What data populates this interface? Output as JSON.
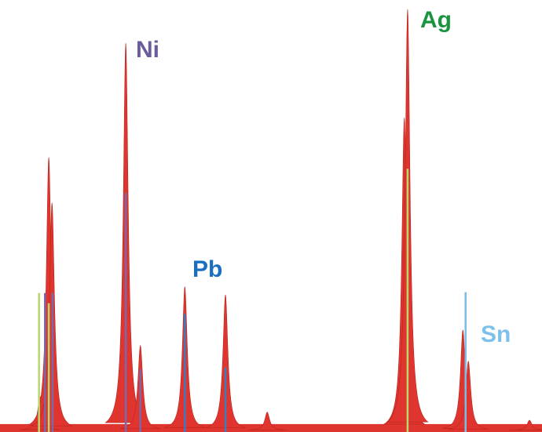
{
  "chart_data": {
    "type": "spectrum",
    "xlim": [
      0,
      100
    ],
    "ylim": [
      0,
      100
    ],
    "color": "#e0352f",
    "baseline": 1.5,
    "peaks": {
      "x": [
        7.4,
        9.0,
        9.6,
        23.2,
        25.9,
        34.1,
        41.6,
        49.3,
        74.6,
        75.2,
        85.4,
        86.4,
        97.7
      ],
      "values": [
        8,
        64.4,
        53.7,
        91.3,
        20,
        33.9,
        32,
        4.3,
        73.7,
        99.3,
        23.7,
        16.3,
        2.4
      ]
    },
    "series": [
      {
        "color": "#b8d86a",
        "x": [
          7.2,
          9.0,
          75.2
        ],
        "values": [
          32.4,
          30,
          61.7
        ]
      },
      {
        "color": "#7b68a8",
        "x": [
          8.3,
          9.7,
          23.2,
          25.9
        ],
        "values": [
          32.4,
          32.4,
          56,
          14.4
        ]
      },
      {
        "color": "#3a7cc0",
        "x": [
          34.1,
          41.6
        ],
        "values": [
          27.4,
          14.8
        ]
      },
      {
        "color": "#78bde8",
        "x": [
          85.9
        ],
        "values": [
          32.6
        ]
      }
    ],
    "annotations": [
      {
        "text": "Ni",
        "color": "#6b5a9c"
      },
      {
        "text": "Pb",
        "color": "#1a6fc0"
      },
      {
        "text": "Ag",
        "color": "#1a9440"
      },
      {
        "text": "Sn",
        "color": "#7cc0ec"
      }
    ]
  }
}
